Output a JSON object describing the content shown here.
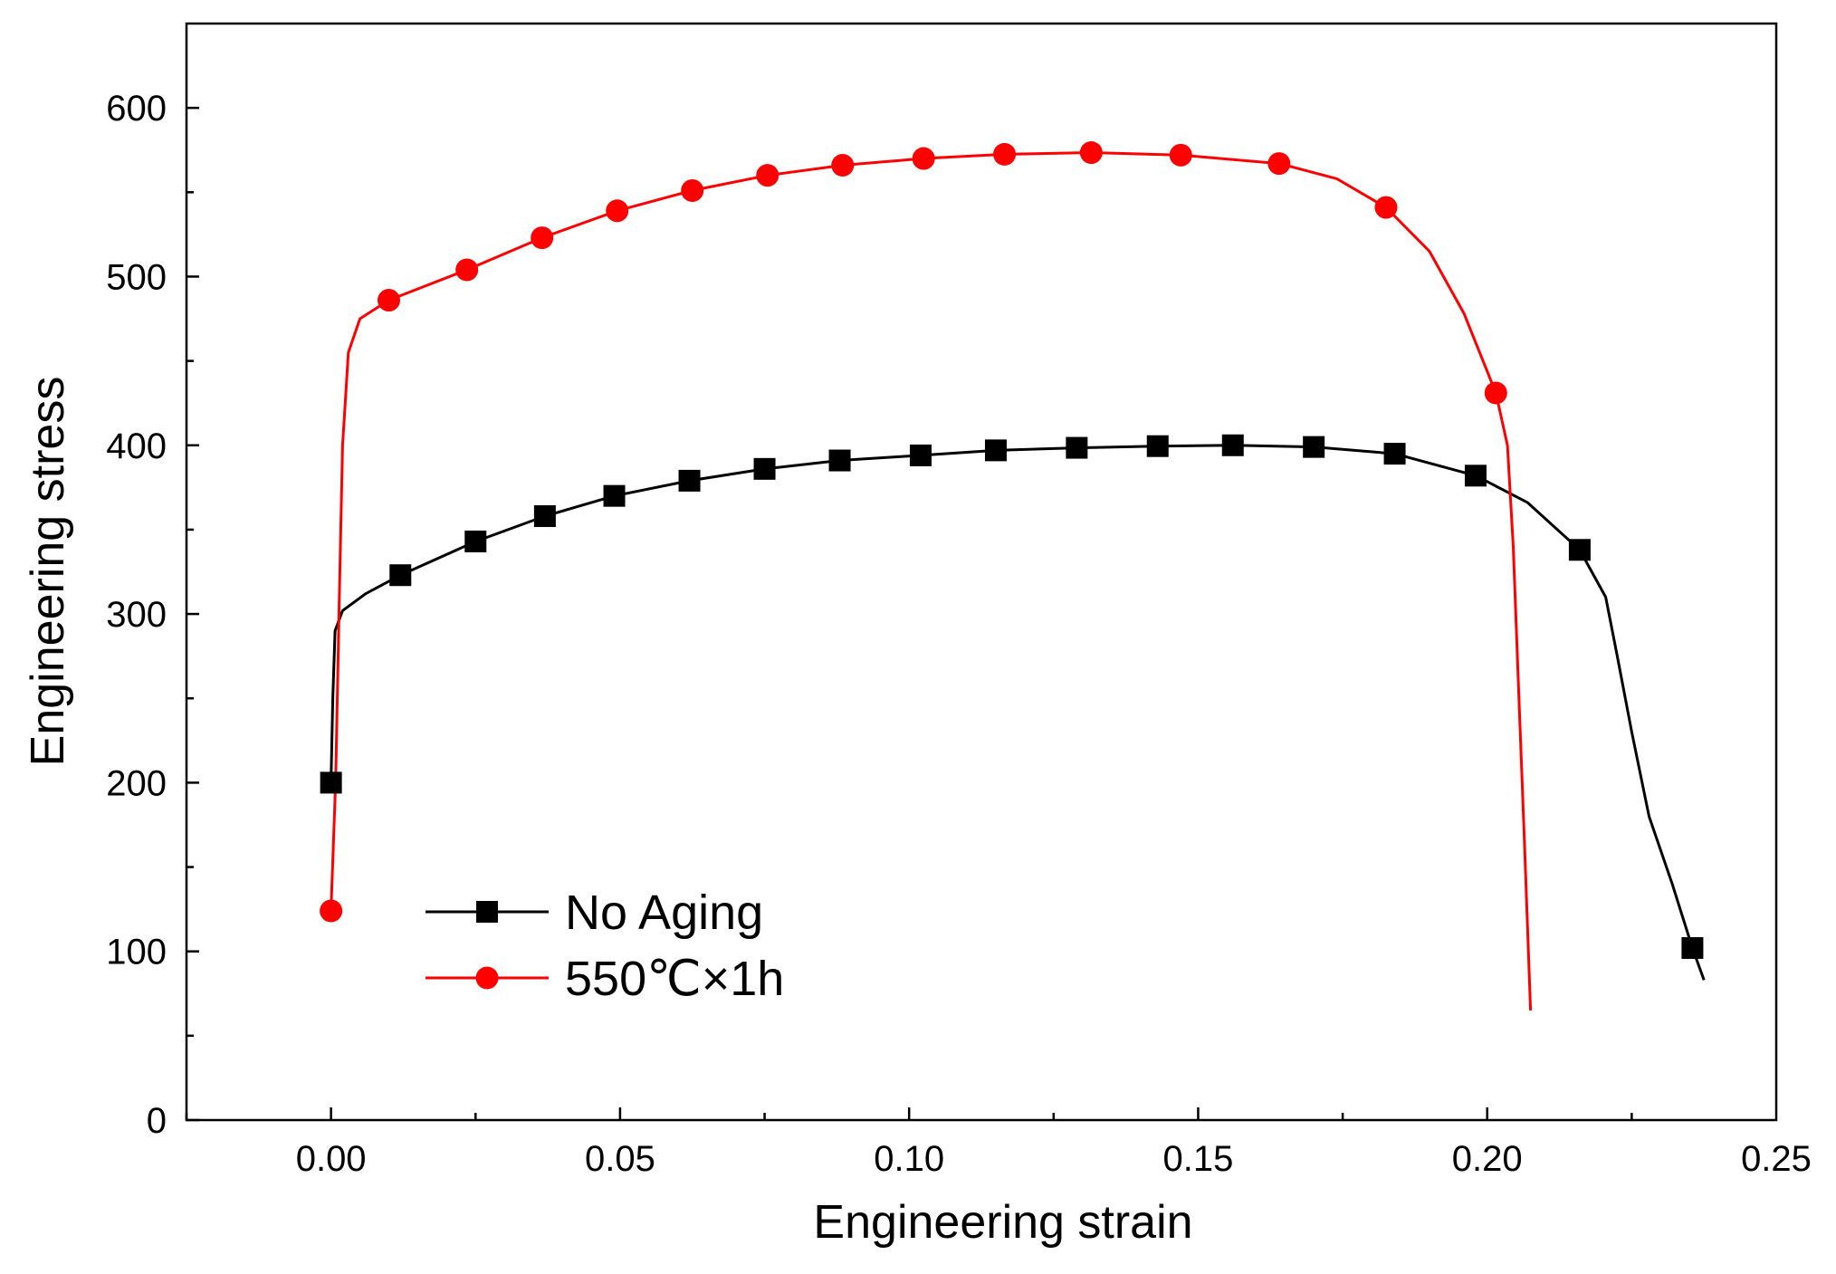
{
  "chart_data": {
    "type": "line",
    "title": "",
    "xlabel": "Engineering strain",
    "ylabel": "Engineering stress",
    "xlim": [
      -0.025,
      0.25
    ],
    "ylim": [
      0,
      650
    ],
    "x_ticks": [
      0.0,
      0.05,
      0.1,
      0.15,
      0.2,
      0.25
    ],
    "x_tick_labels": [
      "0.00",
      "0.05",
      "0.10",
      "0.15",
      "0.20",
      "0.25"
    ],
    "y_ticks": [
      0,
      100,
      200,
      300,
      400,
      500,
      600
    ],
    "y_tick_labels": [
      "0",
      "100",
      "200",
      "300",
      "400",
      "500",
      "600"
    ],
    "grid": false,
    "legend_position": "bottom-left",
    "series": [
      {
        "name": "No Aging",
        "color": "#000000",
        "marker": "square",
        "curve": [
          [
            0.0,
            200
          ],
          [
            0.0003,
            250
          ],
          [
            0.0007,
            290
          ],
          [
            0.002,
            302
          ],
          [
            0.006,
            312
          ],
          [
            0.012,
            323
          ],
          [
            0.025,
            343
          ],
          [
            0.037,
            358
          ],
          [
            0.049,
            370
          ],
          [
            0.062,
            379
          ],
          [
            0.075,
            386
          ],
          [
            0.088,
            391
          ],
          [
            0.102,
            394
          ],
          [
            0.115,
            397
          ],
          [
            0.129,
            398.5
          ],
          [
            0.143,
            399.5
          ],
          [
            0.156,
            400
          ],
          [
            0.17,
            399
          ],
          [
            0.184,
            395
          ],
          [
            0.198,
            382
          ],
          [
            0.207,
            366
          ],
          [
            0.216,
            338
          ],
          [
            0.2205,
            310
          ],
          [
            0.2225,
            275
          ],
          [
            0.225,
            230
          ],
          [
            0.228,
            180
          ],
          [
            0.232,
            140
          ],
          [
            0.2355,
            102
          ],
          [
            0.2375,
            83
          ]
        ],
        "markers": [
          [
            0.0,
            200
          ],
          [
            0.012,
            323
          ],
          [
            0.025,
            343
          ],
          [
            0.037,
            358
          ],
          [
            0.049,
            370
          ],
          [
            0.062,
            379
          ],
          [
            0.075,
            386
          ],
          [
            0.088,
            391
          ],
          [
            0.102,
            394
          ],
          [
            0.115,
            397
          ],
          [
            0.129,
            398.5
          ],
          [
            0.143,
            399.5
          ],
          [
            0.156,
            400
          ],
          [
            0.17,
            399
          ],
          [
            0.184,
            395
          ],
          [
            0.198,
            382
          ],
          [
            0.216,
            338
          ],
          [
            0.2355,
            102
          ]
        ]
      },
      {
        "name": "550℃×1h",
        "color": "#ff0000",
        "marker": "circle",
        "curve": [
          [
            0.0,
            124
          ],
          [
            0.0008,
            200
          ],
          [
            0.0015,
            320
          ],
          [
            0.002,
            400
          ],
          [
            0.003,
            455
          ],
          [
            0.005,
            475
          ],
          [
            0.01,
            486
          ],
          [
            0.0235,
            504
          ],
          [
            0.0365,
            523
          ],
          [
            0.0495,
            539
          ],
          [
            0.0625,
            551
          ],
          [
            0.0755,
            560
          ],
          [
            0.0885,
            566
          ],
          [
            0.1025,
            570
          ],
          [
            0.1165,
            572.5
          ],
          [
            0.1315,
            573.5
          ],
          [
            0.147,
            572
          ],
          [
            0.164,
            567
          ],
          [
            0.174,
            558
          ],
          [
            0.1825,
            541
          ],
          [
            0.19,
            515
          ],
          [
            0.196,
            478
          ],
          [
            0.2015,
            431
          ],
          [
            0.2035,
            400
          ],
          [
            0.2045,
            340
          ],
          [
            0.2055,
            250
          ],
          [
            0.2065,
            160
          ],
          [
            0.2075,
            65
          ]
        ],
        "markers": [
          [
            0.0,
            124
          ],
          [
            0.01,
            486
          ],
          [
            0.0235,
            504
          ],
          [
            0.0365,
            523
          ],
          [
            0.0495,
            539
          ],
          [
            0.0625,
            551
          ],
          [
            0.0755,
            560
          ],
          [
            0.0885,
            566
          ],
          [
            0.1025,
            570
          ],
          [
            0.1165,
            572.5
          ],
          [
            0.1315,
            573.5
          ],
          [
            0.147,
            572
          ],
          [
            0.164,
            567
          ],
          [
            0.1825,
            541
          ],
          [
            0.2015,
            431
          ]
        ]
      }
    ]
  }
}
